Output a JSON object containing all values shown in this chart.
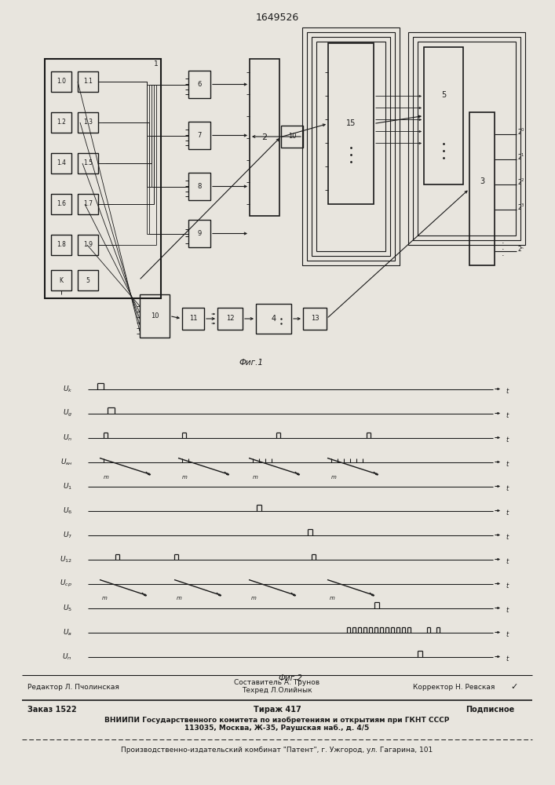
{
  "title": "1649526",
  "fig1_caption": "Фиг.1",
  "fig2_caption": "Фиг.2",
  "bg": "#e8e5de",
  "lc": "#1a1a1a",
  "footer_editor": "Редактор Л. Пчолинская",
  "footer_comp1": "Составитель А. Трунов",
  "footer_comp2": "Техред Л.Олийнык",
  "footer_corr": "Корректор Н. Ревская",
  "footer_order": "Заказ 1522",
  "footer_circ": "Тираж 417",
  "footer_sub": "Подписное",
  "footer_vn1": "ВНИИПИ Государственного комитета по изобретениям и открытиям при ГКНТ СССР",
  "footer_vn2": "113035, Москва, Ж-35, Раушская наб., д. 4/5",
  "footer_pub": "Производственно-издательский комбинат \"Патент\", г. Ужгород, ул. Гагарина, 101"
}
